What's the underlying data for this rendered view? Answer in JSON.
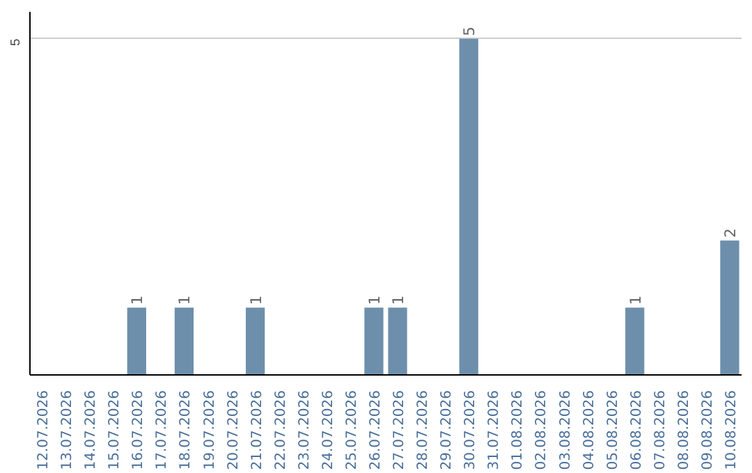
{
  "chart_data": {
    "type": "bar",
    "categories": [
      "12.07.2026",
      "13.07.2026",
      "14.07.2026",
      "15.07.2026",
      "16.07.2026",
      "17.07.2026",
      "18.07.2026",
      "19.07.2026",
      "20.07.2026",
      "21.07.2026",
      "22.07.2026",
      "23.07.2026",
      "24.07.2026",
      "25.07.2026",
      "26.07.2026",
      "27.07.2026",
      "28.07.2026",
      "29.07.2026",
      "30.07.2026",
      "31.07.2026",
      "01.08.2026",
      "02.08.2026",
      "03.08.2026",
      "04.08.2026",
      "05.08.2026",
      "06.08.2026",
      "07.08.2026",
      "08.08.2026",
      "09.08.2026",
      "10.08.2026"
    ],
    "values": [
      0,
      0,
      0,
      0,
      1,
      0,
      1,
      0,
      0,
      1,
      0,
      0,
      0,
      0,
      1,
      1,
      0,
      0,
      5,
      0,
      0,
      0,
      0,
      0,
      0,
      1,
      0,
      0,
      0,
      2
    ],
    "value_labels": [
      null,
      null,
      null,
      null,
      "1",
      null,
      "1",
      null,
      null,
      "1",
      null,
      null,
      null,
      null,
      "1",
      "1",
      null,
      null,
      "5",
      null,
      null,
      null,
      null,
      null,
      null,
      "1",
      null,
      null,
      null,
      "2"
    ],
    "color": "#6d8fac",
    "ylim": [
      0,
      5.4
    ],
    "yticks": [
      5
    ],
    "grid": "y"
  }
}
